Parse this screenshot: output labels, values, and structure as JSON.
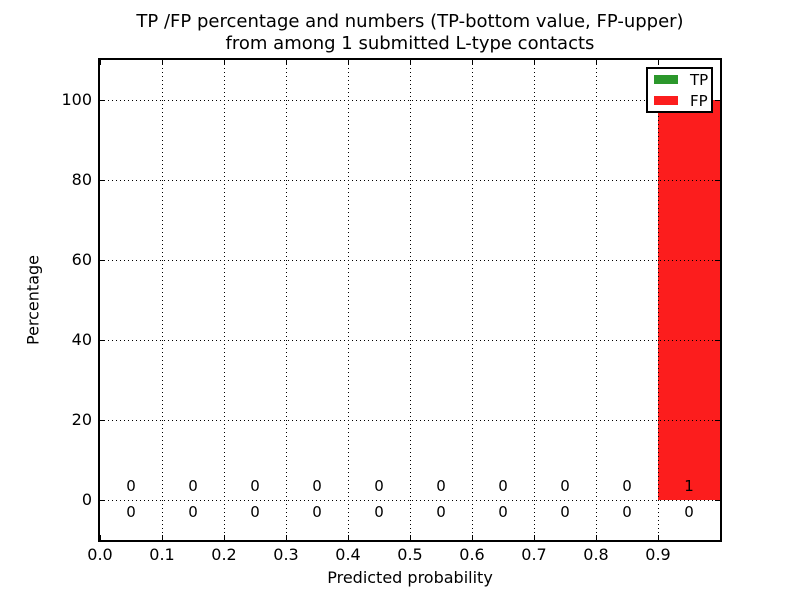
{
  "figure": {
    "title_line1": "TP /FP percentage and numbers (TP-bottom value, FP-upper)",
    "title_line2": "from among 1 submitted L-type contacts"
  },
  "chart_data": {
    "type": "bar",
    "title": "TP /FP percentage and numbers (TP-bottom value, FP-upper) from among 1 submitted L-type contacts",
    "xlabel": "Predicted probability",
    "ylabel": "Percentage",
    "xlim": [
      0.0,
      1.0
    ],
    "ylim": [
      -10,
      110
    ],
    "x_tick_labels": [
      "0.0",
      "0.1",
      "0.2",
      "0.3",
      "0.4",
      "0.5",
      "0.6",
      "0.7",
      "0.8",
      "0.9"
    ],
    "y_tick_values": [
      0,
      20,
      40,
      60,
      80,
      100
    ],
    "bin_edges": [
      0.0,
      0.1,
      0.2,
      0.3,
      0.4,
      0.5,
      0.6,
      0.7,
      0.8,
      0.9,
      1.0
    ],
    "grid": "dotted",
    "legend_position": "upper right",
    "annotation_note": "counts shown per bin: TP-bottom row, FP-upper row",
    "series": [
      {
        "name": "TP",
        "color": "#2b972b",
        "percent": [
          0,
          0,
          0,
          0,
          0,
          0,
          0,
          0,
          0,
          0
        ],
        "counts": [
          0,
          0,
          0,
          0,
          0,
          0,
          0,
          0,
          0,
          0
        ],
        "counts_row": "bottom"
      },
      {
        "name": "FP",
        "color": "#fc1d1d",
        "percent": [
          0,
          0,
          0,
          0,
          0,
          0,
          0,
          0,
          0,
          100
        ],
        "counts": [
          0,
          0,
          0,
          0,
          0,
          0,
          0,
          0,
          0,
          1
        ],
        "counts_row": "top"
      }
    ]
  }
}
